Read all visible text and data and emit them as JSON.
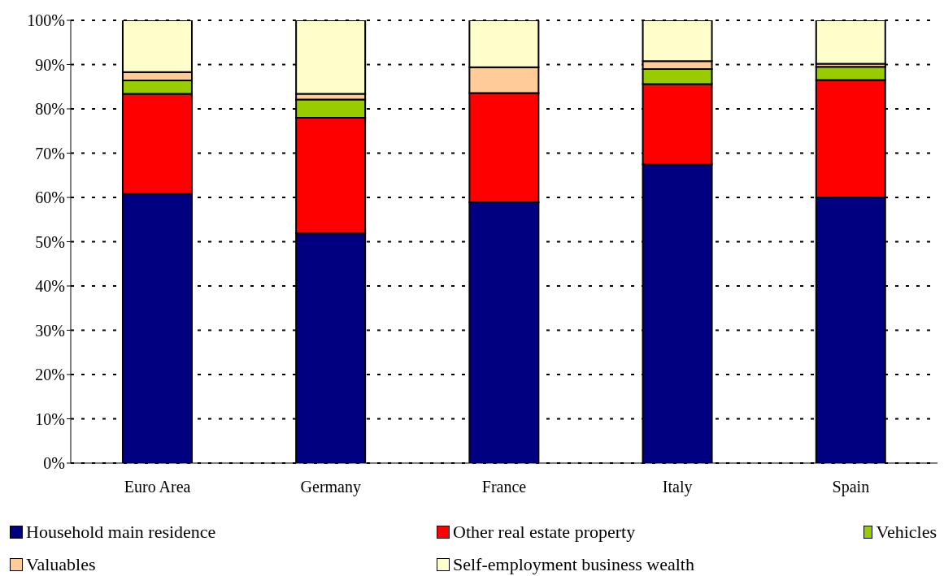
{
  "chart_data": {
    "type": "bar",
    "stacked": true,
    "categories": [
      "Euro Area",
      "Germany",
      "France",
      "Italy",
      "Spain"
    ],
    "series": [
      {
        "name": "Household main residence",
        "color": "#000080",
        "values": [
          60.8,
          51.9,
          58.9,
          67.5,
          60.0
        ]
      },
      {
        "name": "Other real estate property",
        "color": "#ff0000",
        "values": [
          22.6,
          26.1,
          24.7,
          18.1,
          26.5
        ]
      },
      {
        "name": "Vehicles",
        "color": "#99cc00",
        "values": [
          3.0,
          4.1,
          0,
          3.4,
          3.0
        ]
      },
      {
        "name": "Valuables",
        "color": "#ffcc99",
        "values": [
          1.9,
          1.3,
          5.8,
          1.8,
          0.7
        ]
      },
      {
        "name": "Self-employment business wealth",
        "color": "#ffffcc",
        "values": [
          11.7,
          16.6,
          10.6,
          9.2,
          9.8
        ]
      }
    ],
    "ylim": [
      0,
      100
    ],
    "yticks": [
      {
        "value": 0,
        "label": "0%"
      },
      {
        "value": 10,
        "label": "10%"
      },
      {
        "value": 20,
        "label": "20%"
      },
      {
        "value": 30,
        "label": "30%"
      },
      {
        "value": 40,
        "label": "40%"
      },
      {
        "value": 50,
        "label": "50%"
      },
      {
        "value": 60,
        "label": "60%"
      },
      {
        "value": 70,
        "label": "70%"
      },
      {
        "value": 80,
        "label": "80%"
      },
      {
        "value": 90,
        "label": "90%"
      },
      {
        "value": 100,
        "label": "100%"
      }
    ],
    "grid": "y",
    "legend": "bottom"
  }
}
